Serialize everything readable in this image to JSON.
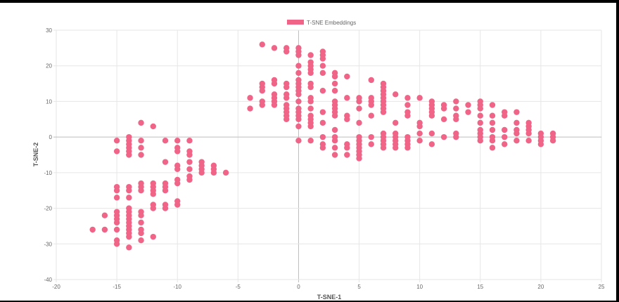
{
  "chart_data": {
    "type": "scatter",
    "xlabel": "T-SNE-1",
    "ylabel": "T-SNE-2",
    "xlim": [
      -20,
      25
    ],
    "ylim": [
      -40,
      30
    ],
    "xticks": [
      -20,
      -15,
      -10,
      -5,
      0,
      5,
      10,
      15,
      20,
      25
    ],
    "yticks": [
      30,
      20,
      10,
      0,
      -10,
      -20,
      -30,
      -40
    ],
    "grid": true,
    "legend_position": "top-center",
    "colors": {
      "point": "#f06487",
      "grid": "#e6e6e6",
      "zero_line": "#bdbdbd"
    },
    "series": [
      {
        "name": "T-SNE Embeddings",
        "points": [
          [
            -17,
            -26
          ],
          [
            -16,
            -22
          ],
          [
            -16,
            -26
          ],
          [
            -15,
            -1
          ],
          [
            -15,
            -4
          ],
          [
            -15,
            -14
          ],
          [
            -15,
            -15
          ],
          [
            -15,
            -17
          ],
          [
            -15,
            -21
          ],
          [
            -15,
            -22
          ],
          [
            -15,
            -23
          ],
          [
            -15,
            -24
          ],
          [
            -15,
            -26
          ],
          [
            -15,
            -29
          ],
          [
            -15,
            -30
          ],
          [
            -14,
            0
          ],
          [
            -14,
            -1
          ],
          [
            -14,
            -2
          ],
          [
            -14,
            -3
          ],
          [
            -14,
            -4
          ],
          [
            -14,
            -5
          ],
          [
            -14,
            -14
          ],
          [
            -14,
            -15
          ],
          [
            -14,
            -17
          ],
          [
            -14,
            -20
          ],
          [
            -14,
            -21
          ],
          [
            -14,
            -22
          ],
          [
            -14,
            -23
          ],
          [
            -14,
            -24
          ],
          [
            -14,
            -25
          ],
          [
            -14,
            -26
          ],
          [
            -14,
            -27
          ],
          [
            -14,
            -28
          ],
          [
            -14,
            -31
          ],
          [
            -13,
            4
          ],
          [
            -13,
            -1
          ],
          [
            -13,
            -3
          ],
          [
            -13,
            -5
          ],
          [
            -13,
            -13
          ],
          [
            -13,
            -14
          ],
          [
            -13,
            -15
          ],
          [
            -13,
            -21
          ],
          [
            -13,
            -22
          ],
          [
            -13,
            -24
          ],
          [
            -13,
            -26
          ],
          [
            -13,
            -27
          ],
          [
            -13,
            -29
          ],
          [
            -12,
            3
          ],
          [
            -12,
            -13
          ],
          [
            -12,
            -14
          ],
          [
            -12,
            -15
          ],
          [
            -12,
            -16
          ],
          [
            -12,
            -19
          ],
          [
            -12,
            -20
          ],
          [
            -12,
            -28
          ],
          [
            -11,
            -1
          ],
          [
            -11,
            -7
          ],
          [
            -11,
            -13
          ],
          [
            -11,
            -14
          ],
          [
            -11,
            -15
          ],
          [
            -11,
            -19
          ],
          [
            -11,
            -20
          ],
          [
            -10,
            -1
          ],
          [
            -10,
            -3
          ],
          [
            -10,
            -4
          ],
          [
            -10,
            -8
          ],
          [
            -10,
            -9
          ],
          [
            -10,
            -12
          ],
          [
            -10,
            -13
          ],
          [
            -10,
            -18
          ],
          [
            -10,
            -19
          ],
          [
            -9,
            -1
          ],
          [
            -9,
            -4
          ],
          [
            -9,
            -5
          ],
          [
            -9,
            -7
          ],
          [
            -9,
            -9
          ],
          [
            -9,
            -11
          ],
          [
            -9,
            -12
          ],
          [
            -8,
            -7
          ],
          [
            -8,
            -8
          ],
          [
            -8,
            -9
          ],
          [
            -8,
            -10
          ],
          [
            -7,
            -8
          ],
          [
            -7,
            -9
          ],
          [
            -7,
            -10
          ],
          [
            -6,
            -10
          ],
          [
            -4,
            11
          ],
          [
            -4,
            8
          ],
          [
            -3,
            26
          ],
          [
            -3,
            15
          ],
          [
            -3,
            14
          ],
          [
            -3,
            13
          ],
          [
            -3,
            10
          ],
          [
            -3,
            9
          ],
          [
            -2,
            25
          ],
          [
            -2,
            16
          ],
          [
            -2,
            15
          ],
          [
            -2,
            12
          ],
          [
            -2,
            11
          ],
          [
            -2,
            10
          ],
          [
            -2,
            9
          ],
          [
            -1,
            25
          ],
          [
            -1,
            24
          ],
          [
            -1,
            15
          ],
          [
            -1,
            14
          ],
          [
            -1,
            12
          ],
          [
            -1,
            11
          ],
          [
            -1,
            9
          ],
          [
            -1,
            8
          ],
          [
            -1,
            7
          ],
          [
            -1,
            6
          ],
          [
            -1,
            5
          ],
          [
            0,
            25
          ],
          [
            0,
            24
          ],
          [
            0,
            23
          ],
          [
            0,
            20
          ],
          [
            0,
            18
          ],
          [
            0,
            16
          ],
          [
            0,
            15
          ],
          [
            0,
            14
          ],
          [
            0,
            13
          ],
          [
            0,
            12
          ],
          [
            0,
            10
          ],
          [
            0,
            8
          ],
          [
            0,
            7
          ],
          [
            0,
            6
          ],
          [
            0,
            5
          ],
          [
            0,
            3
          ],
          [
            0,
            -1
          ],
          [
            1,
            23
          ],
          [
            1,
            21
          ],
          [
            1,
            20
          ],
          [
            1,
            19
          ],
          [
            1,
            18
          ],
          [
            1,
            15
          ],
          [
            1,
            14
          ],
          [
            1,
            11
          ],
          [
            1,
            10
          ],
          [
            1,
            8
          ],
          [
            1,
            6
          ],
          [
            1,
            5
          ],
          [
            1,
            4
          ],
          [
            1,
            3
          ],
          [
            1,
            -1
          ],
          [
            2,
            24
          ],
          [
            2,
            23
          ],
          [
            2,
            22
          ],
          [
            2,
            20
          ],
          [
            2,
            18
          ],
          [
            2,
            13
          ],
          [
            2,
            7
          ],
          [
            2,
            4
          ],
          [
            2,
            0
          ],
          [
            2,
            -2
          ],
          [
            2,
            -3
          ],
          [
            3,
            18
          ],
          [
            3,
            17
          ],
          [
            3,
            15
          ],
          [
            3,
            13
          ],
          [
            3,
            10
          ],
          [
            3,
            9
          ],
          [
            3,
            8
          ],
          [
            3,
            7
          ],
          [
            3,
            6
          ],
          [
            3,
            2
          ],
          [
            3,
            0
          ],
          [
            3,
            -1
          ],
          [
            3,
            -3
          ],
          [
            3,
            -5
          ],
          [
            4,
            17
          ],
          [
            4,
            11
          ],
          [
            4,
            6
          ],
          [
            4,
            5
          ],
          [
            4,
            -2
          ],
          [
            4,
            -3
          ],
          [
            4,
            -5
          ],
          [
            5,
            11
          ],
          [
            5,
            10
          ],
          [
            5,
            8
          ],
          [
            5,
            4
          ],
          [
            5,
            0
          ],
          [
            5,
            -1
          ],
          [
            5,
            -2
          ],
          [
            5,
            -3
          ],
          [
            5,
            -4
          ],
          [
            5,
            -5
          ],
          [
            5,
            -6
          ],
          [
            6,
            16
          ],
          [
            6,
            11
          ],
          [
            6,
            10
          ],
          [
            6,
            9
          ],
          [
            6,
            6
          ],
          [
            6,
            0
          ],
          [
            6,
            -2
          ],
          [
            7,
            15
          ],
          [
            7,
            14
          ],
          [
            7,
            13
          ],
          [
            7,
            12
          ],
          [
            7,
            11
          ],
          [
            7,
            10
          ],
          [
            7,
            9
          ],
          [
            7,
            8
          ],
          [
            7,
            7
          ],
          [
            7,
            1
          ],
          [
            7,
            0
          ],
          [
            7,
            -1
          ],
          [
            7,
            -2
          ],
          [
            7,
            -3
          ],
          [
            8,
            12
          ],
          [
            8,
            4
          ],
          [
            8,
            1
          ],
          [
            8,
            0
          ],
          [
            8,
            -1
          ],
          [
            8,
            -2
          ],
          [
            8,
            -3
          ],
          [
            9,
            11
          ],
          [
            9,
            9
          ],
          [
            9,
            7
          ],
          [
            9,
            6
          ],
          [
            9,
            0
          ],
          [
            9,
            -1
          ],
          [
            9,
            -2
          ],
          [
            9,
            -3
          ],
          [
            10,
            11
          ],
          [
            10,
            4
          ],
          [
            10,
            3
          ],
          [
            10,
            1
          ],
          [
            10,
            -1
          ],
          [
            11,
            10
          ],
          [
            11,
            9
          ],
          [
            11,
            8
          ],
          [
            11,
            7
          ],
          [
            11,
            6
          ],
          [
            11,
            1
          ],
          [
            11,
            -2
          ],
          [
            12,
            9
          ],
          [
            12,
            8
          ],
          [
            12,
            5
          ],
          [
            12,
            0
          ],
          [
            13,
            10
          ],
          [
            13,
            8
          ],
          [
            13,
            6
          ],
          [
            13,
            5
          ],
          [
            13,
            1
          ],
          [
            13,
            0
          ],
          [
            14,
            9
          ],
          [
            14,
            7
          ],
          [
            15,
            10
          ],
          [
            15,
            9
          ],
          [
            15,
            8
          ],
          [
            15,
            6
          ],
          [
            15,
            4
          ],
          [
            15,
            2
          ],
          [
            15,
            1
          ],
          [
            15,
            0
          ],
          [
            15,
            -1
          ],
          [
            16,
            9
          ],
          [
            16,
            6
          ],
          [
            16,
            4
          ],
          [
            16,
            2
          ],
          [
            16,
            0
          ],
          [
            16,
            -1
          ],
          [
            16,
            -3
          ],
          [
            17,
            7
          ],
          [
            17,
            6
          ],
          [
            17,
            2
          ],
          [
            17,
            0
          ],
          [
            17,
            -2
          ],
          [
            18,
            7
          ],
          [
            18,
            4
          ],
          [
            18,
            2
          ],
          [
            18,
            1
          ],
          [
            18,
            -1
          ],
          [
            19,
            4
          ],
          [
            19,
            3
          ],
          [
            19,
            2
          ],
          [
            19,
            1
          ],
          [
            19,
            -1
          ],
          [
            20,
            1
          ],
          [
            20,
            0
          ],
          [
            20,
            -1
          ],
          [
            20,
            -2
          ],
          [
            21,
            1
          ],
          [
            21,
            0
          ],
          [
            21,
            -1
          ]
        ]
      }
    ]
  }
}
